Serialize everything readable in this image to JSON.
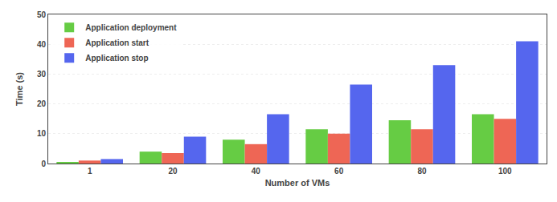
{
  "chart_data": {
    "type": "bar",
    "categories": [
      1,
      20,
      40,
      60,
      80,
      100
    ],
    "series": [
      {
        "name": "Application deployment",
        "color": "#66cc44",
        "values": [
          0.5,
          4.0,
          8.0,
          11.5,
          14.5,
          16.5
        ]
      },
      {
        "name": "Application start",
        "color": "#ee6655",
        "values": [
          1.0,
          3.5,
          6.5,
          10.0,
          11.5,
          15.0
        ]
      },
      {
        "name": "Application stop",
        "color": "#5566ee",
        "values": [
          1.5,
          9.0,
          16.5,
          26.5,
          33.0,
          41.0
        ]
      }
    ],
    "xlabel": "Number of VMs",
    "ylabel": "Time (s)",
    "ylim": [
      0,
      50
    ],
    "yticks": [
      0,
      10,
      20,
      30,
      40,
      50
    ],
    "grid": true,
    "legend": "upper left"
  }
}
